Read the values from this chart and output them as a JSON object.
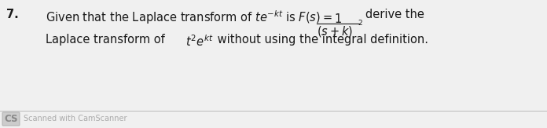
{
  "bg_color": "#f0f0f0",
  "number": "7.",
  "text_color": "#1a1a1a",
  "footer_color": "#aaaaaa",
  "separator_color": "#bbbbbb",
  "main_fontsize": 10.5,
  "small_fontsize": 7.5,
  "footer_fontsize": 7.0,
  "line1_before_fraction": "Given that the Laplace transform of $te^{-kt}$ is $F(s) =$",
  "fraction_num": "1",
  "fraction_den": "$(s + k)$",
  "fraction_den_exp": "2",
  "after_fraction": "derive the",
  "line2_pre": "Laplace transform of ",
  "line2_math": "$t^{2}e^{kt}$",
  "line2_post": " without using the integral definition.",
  "footer_text": "Scanned with CamScanner",
  "cs_box_color": "#cccccc",
  "cs_text_color": "#888888"
}
